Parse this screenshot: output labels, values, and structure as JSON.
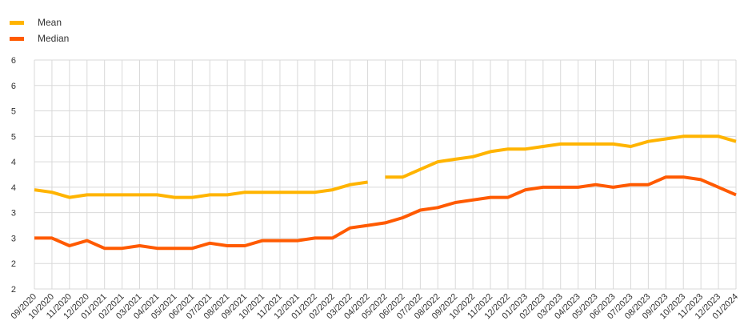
{
  "chart_data": {
    "type": "line",
    "title": "",
    "xlabel": "",
    "ylabel": "",
    "categories": [
      "09/2020",
      "10/2020",
      "11/2020",
      "12/2020",
      "01/2021",
      "02/2021",
      "03/2021",
      "04/2021",
      "05/2021",
      "06/2021",
      "07/2021",
      "08/2021",
      "09/2021",
      "10/2021",
      "11/2021",
      "12/2021",
      "01/2022",
      "02/2022",
      "03/2022",
      "04/2022",
      "05/2022",
      "06/2022",
      "07/2022",
      "08/2022",
      "09/2022",
      "10/2022",
      "11/2022",
      "12/2022",
      "01/2023",
      "02/2023",
      "03/2023",
      "04/2023",
      "05/2023",
      "06/2023",
      "07/2023",
      "08/2023",
      "09/2023",
      "10/2023",
      "11/2023",
      "12/2023",
      "01/2024"
    ],
    "y_tick_labels": [
      "6",
      "6",
      "5",
      "5",
      "4",
      "4",
      "3",
      "3",
      "2",
      "2"
    ],
    "ylim": [
      1.5,
      6.0
    ],
    "grid": true,
    "legend_position": "top-left",
    "series": [
      {
        "name": "Mean",
        "color": "#FFB400",
        "segments": [
          {
            "categories": [
              "09/2020",
              "10/2020",
              "11/2020",
              "12/2020",
              "01/2021",
              "02/2021",
              "03/2021",
              "04/2021",
              "05/2021",
              "06/2021",
              "07/2021",
              "08/2021",
              "09/2021",
              "10/2021",
              "11/2021",
              "12/2021",
              "01/2022",
              "02/2022",
              "03/2022",
              "04/2022"
            ],
            "values": [
              3.45,
              3.4,
              3.3,
              3.35,
              3.35,
              3.35,
              3.35,
              3.35,
              3.3,
              3.3,
              3.35,
              3.35,
              3.4,
              3.4,
              3.4,
              3.4,
              3.4,
              3.45,
              3.55,
              3.6
            ]
          },
          {
            "categories": [
              "05/2022",
              "06/2022",
              "07/2022",
              "08/2022",
              "09/2022",
              "10/2022",
              "11/2022",
              "12/2022",
              "01/2023",
              "02/2023",
              "03/2023",
              "04/2023",
              "05/2023",
              "06/2023",
              "07/2023",
              "08/2023",
              "09/2023",
              "10/2023",
              "11/2023",
              "12/2023",
              "01/2024"
            ],
            "values": [
              3.7,
              3.7,
              3.85,
              4.0,
              4.05,
              4.1,
              4.2,
              4.25,
              4.25,
              4.3,
              4.35,
              4.35,
              4.35,
              4.35,
              4.3,
              4.4,
              4.45,
              4.5,
              4.5,
              4.5,
              4.4
            ]
          }
        ]
      },
      {
        "name": "Median",
        "color": "#FF5A00",
        "segments": [
          {
            "categories": [
              "09/2020",
              "10/2020",
              "11/2020",
              "12/2020",
              "01/2021",
              "02/2021",
              "03/2021",
              "04/2021",
              "05/2021",
              "06/2021",
              "07/2021",
              "08/2021",
              "09/2021",
              "10/2021",
              "11/2021",
              "12/2021",
              "01/2022",
              "02/2022",
              "03/2022",
              "04/2022",
              "05/2022",
              "06/2022",
              "07/2022",
              "08/2022",
              "09/2022",
              "10/2022",
              "11/2022",
              "12/2022",
              "01/2023",
              "02/2023",
              "03/2023",
              "04/2023",
              "05/2023",
              "06/2023",
              "07/2023",
              "08/2023",
              "09/2023",
              "10/2023",
              "11/2023",
              "12/2023",
              "01/2024"
            ],
            "values": [
              2.5,
              2.5,
              2.35,
              2.45,
              2.3,
              2.3,
              2.35,
              2.3,
              2.3,
              2.3,
              2.4,
              2.35,
              2.35,
              2.45,
              2.45,
              2.45,
              2.5,
              2.5,
              2.7,
              2.75,
              2.8,
              2.9,
              3.05,
              3.1,
              3.2,
              3.25,
              3.3,
              3.3,
              3.45,
              3.5,
              3.5,
              3.5,
              3.55,
              3.5,
              3.55,
              3.55,
              3.7,
              3.7,
              3.65,
              3.5,
              3.35
            ]
          }
        ]
      }
    ]
  }
}
